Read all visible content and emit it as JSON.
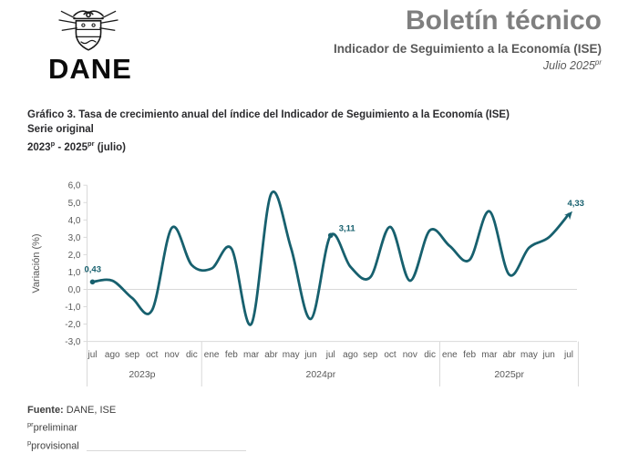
{
  "header": {
    "logo_text": "DANE",
    "title": "Boletín técnico",
    "subtitle": "Indicador de Seguimiento a la Economía (ISE)",
    "period_text": "Julio 2025",
    "period_sup": "pr"
  },
  "chart_heading": {
    "line1": "Gráfico 3. Tasa de crecimiento anual del índice del Indicador de Seguimiento a la Economía (ISE)",
    "line2": "Serie original",
    "line3_a": "2023",
    "line3_a_sup": "p",
    "line3_b": " - 2025",
    "line3_b_sup": "pr",
    "line3_c": " (julio)"
  },
  "chart_data": {
    "type": "line",
    "title": "Tasa de crecimiento anual del índice del Indicador de Seguimiento a la Economía (ISE), serie original",
    "ylabel": "Variación (%)",
    "ylim": [
      -3.0,
      6.0
    ],
    "ytick_step": 1.0,
    "ytick_labels": [
      "6,0",
      "5,0",
      "4,0",
      "3,0",
      "2,0",
      "1,0",
      "0,0",
      "-1,0",
      "-2,0",
      "-3,0"
    ],
    "grid": "zero-line-only",
    "categories": [
      "jul",
      "ago",
      "sep",
      "oct",
      "nov",
      "dic",
      "ene",
      "feb",
      "mar",
      "abr",
      "may",
      "jun",
      "jul",
      "ago",
      "sep",
      "oct",
      "nov",
      "dic",
      "ene",
      "feb",
      "mar",
      "abr",
      "may",
      "jun",
      "jul"
    ],
    "year_groups": [
      {
        "label": "2023p",
        "from": 0,
        "to": 5
      },
      {
        "label": "2024pr",
        "from": 6,
        "to": 17
      },
      {
        "label": "2025pr",
        "from": 18,
        "to": 24
      }
    ],
    "values": [
      0.43,
      0.5,
      -0.5,
      -1.2,
      3.55,
      1.4,
      1.2,
      2.35,
      -2.0,
      5.5,
      2.4,
      -1.7,
      3.11,
      1.3,
      0.7,
      3.6,
      0.5,
      3.4,
      2.5,
      1.7,
      4.5,
      0.85,
      2.4,
      3.0,
      4.33
    ],
    "point_labels": [
      {
        "index": 0,
        "text": "0,43"
      },
      {
        "index": 12,
        "text": "3,11"
      },
      {
        "index": 24,
        "text": "4,33"
      }
    ],
    "line_color": "#17606e",
    "label_color": "#17606e",
    "axis_text_color": "#595959",
    "grid_color": "#d9d9d9",
    "legend": "none"
  },
  "footer": {
    "source_label": "Fuente:",
    "source_value": " DANE, ISE",
    "note1_sup": "pr",
    "note1_text": "preliminar",
    "note2_sup": "p",
    "note2_text": "provisional"
  }
}
